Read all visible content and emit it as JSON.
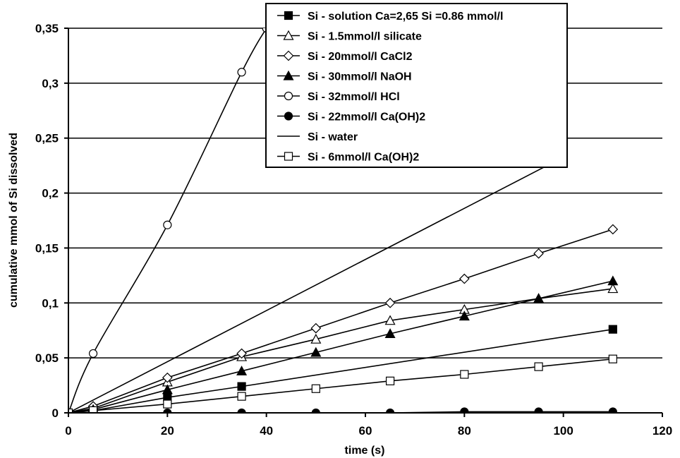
{
  "chart_data": {
    "type": "line",
    "title": "",
    "xlabel": "time (s)",
    "ylabel": "cumulative mmol of Si dissolved",
    "xlim": [
      0,
      120
    ],
    "ylim": [
      0,
      0.35
    ],
    "x_ticks": [
      0,
      20,
      40,
      60,
      80,
      100,
      120
    ],
    "x_tick_labels": [
      "0",
      "20",
      "40",
      "60",
      "80",
      "100",
      "120"
    ],
    "y_ticks": [
      0,
      0.05,
      0.1,
      0.15,
      0.2,
      0.25,
      0.3,
      0.35
    ],
    "y_tick_labels": [
      "0",
      "0,05",
      "0,1",
      "0,15",
      "0,2",
      "0,25",
      "0,3",
      "0,35"
    ],
    "grid": "horizontal",
    "legend_position": "top-center",
    "series": [
      {
        "name": "Si - solution Ca=2,65 Si =0.86 mmol/l",
        "marker": "filled-square",
        "x": [
          0,
          5,
          20,
          35,
          110
        ],
        "y": [
          0,
          0.002,
          0.014,
          0.024,
          0.076
        ]
      },
      {
        "name": "Si - 1.5mmol/l silicate",
        "marker": "open-triangle",
        "x": [
          0,
          5,
          20,
          35,
          50,
          65,
          80,
          95,
          110
        ],
        "y": [
          0,
          0.004,
          0.028,
          0.051,
          0.067,
          0.084,
          0.094,
          0.104,
          0.113
        ]
      },
      {
        "name": "Si - 20mmol/l CaCl2",
        "marker": "open-diamond",
        "x": [
          0,
          5,
          20,
          35,
          50,
          65,
          80,
          95,
          110
        ],
        "y": [
          0,
          0.006,
          0.032,
          0.054,
          0.077,
          0.1,
          0.122,
          0.145,
          0.167
        ]
      },
      {
        "name": "Si - 30mmol/l NaOH",
        "marker": "filled-triangle",
        "x": [
          0,
          5,
          20,
          35,
          50,
          65,
          80,
          95,
          110
        ],
        "y": [
          0,
          0.003,
          0.021,
          0.038,
          0.055,
          0.072,
          0.088,
          0.104,
          0.12
        ]
      },
      {
        "name": "Si - 32mmol/l HCl",
        "marker": "open-circle",
        "x": [
          0,
          5,
          20,
          35,
          40
        ],
        "y": [
          0,
          0.054,
          0.171,
          0.31,
          0.35
        ]
      },
      {
        "name": "Si - 22mmol/l Ca(OH)2",
        "marker": "filled-circle",
        "x": [
          0,
          5,
          20,
          35,
          50,
          65,
          80,
          95,
          110
        ],
        "y": [
          0,
          0,
          0,
          0,
          0,
          0,
          0.001,
          0.001,
          0.001
        ]
      },
      {
        "name": "Si - water",
        "marker": "none",
        "x": [
          0,
          98
        ],
        "y": [
          0,
          0.228
        ]
      },
      {
        "name": "Si - 6mmol/l Ca(OH)2",
        "marker": "open-square",
        "x": [
          0,
          5,
          20,
          35,
          50,
          65,
          80,
          95,
          110
        ],
        "y": [
          0,
          0.002,
          0.008,
          0.015,
          0.022,
          0.029,
          0.035,
          0.042,
          0.049
        ]
      }
    ]
  }
}
